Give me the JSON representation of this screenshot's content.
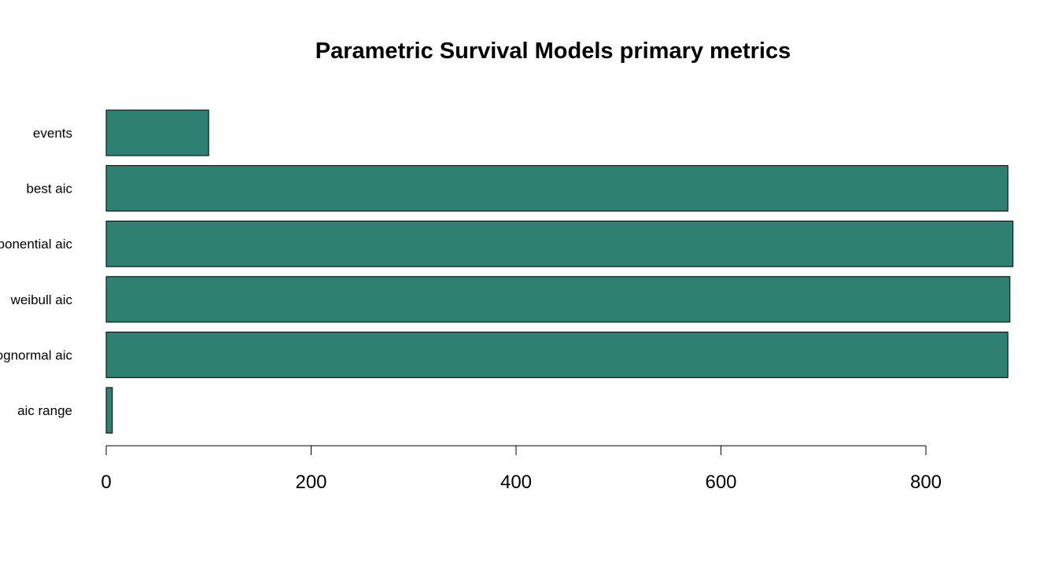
{
  "chart_data": {
    "type": "bar",
    "orientation": "horizontal",
    "title": "Parametric Survival Models primary metrics",
    "xlabel": "",
    "ylabel": "",
    "categories": [
      "events",
      "best aic",
      "exponential aic",
      "weibull aic",
      "lognormal aic",
      "aic range"
    ],
    "values": [
      100,
      880,
      885,
      882,
      880,
      6
    ],
    "xlim": [
      0,
      885
    ],
    "x_ticks": [
      0,
      200,
      400,
      600,
      800
    ],
    "x_tick_labels": [
      "0",
      "200",
      "400",
      "600",
      "800"
    ],
    "bar_color": "#2e8070",
    "grid": false,
    "legend": "none"
  }
}
